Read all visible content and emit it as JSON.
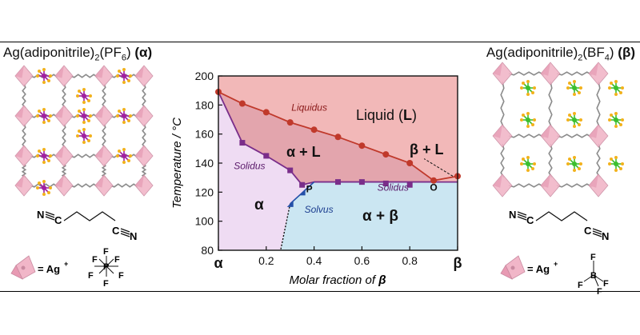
{
  "left_compound": {
    "formula_prefix": "Ag(adiponitrile)",
    "subscript": "2",
    "anion_prefix": "(PF",
    "anion_subscript": "6",
    "anion_suffix": ")",
    "phase_symbol": "(α)",
    "legend_equals": "= Ag",
    "legend_plus": "+",
    "anion_atoms": [
      "F",
      "F",
      "F",
      "P",
      "F",
      "F",
      "F"
    ],
    "molecule_N1": "N",
    "molecule_C1": "C",
    "molecule_C2": "C",
    "molecule_N2": "N"
  },
  "right_compound": {
    "formula_prefix": "Ag(adiponitrile)",
    "subscript": "2",
    "anion_prefix": "(BF",
    "anion_subscript": "4",
    "anion_suffix": ")",
    "phase_symbol": "(β)",
    "legend_equals": "= Ag",
    "legend_plus": "+",
    "anion_atoms": [
      "F",
      "B",
      "F",
      "F",
      "F"
    ],
    "molecule_N1": "N",
    "molecule_C1": "C",
    "molecule_C2": "C",
    "molecule_N2": "N"
  },
  "colors": {
    "liquid_region": "#f2b8b8",
    "alpha_L_region": "#e3a5ad",
    "alpha_region": "#efdcf3",
    "alpha_beta_region": "#cbe6f2",
    "liquidus": "#c0392b",
    "solidus": "#7a2e8a",
    "solvus": "#2450a8",
    "octahedra": "#f1b6c8",
    "linker": "#8a8a8a",
    "pf6_atom": "#a01fa0",
    "bf4_atom": "#3bbf2e",
    "fluorine": "#f2b21c"
  },
  "chart_data": {
    "type": "scatter",
    "xlabel_prefix": "Molar fraction of ",
    "xlabel_symbol": "β",
    "ylabel": "Temperature / °C",
    "xlim": [
      0,
      1
    ],
    "ylim": [
      80,
      200
    ],
    "x_ticks": [
      {
        "value": 0,
        "label": "α",
        "bold": true
      },
      {
        "value": 0.2,
        "label": "0.2"
      },
      {
        "value": 0.4,
        "label": "0.4"
      },
      {
        "value": 0.6,
        "label": "0.6"
      },
      {
        "value": 0.8,
        "label": "0.8"
      },
      {
        "value": 1,
        "label": "β",
        "bold": true
      }
    ],
    "y_ticks": [
      80,
      100,
      120,
      140,
      160,
      180,
      200
    ],
    "grid": false,
    "series": [
      {
        "name": "Liquidus",
        "marker": "circle",
        "color": "#c0392b",
        "points": [
          [
            0,
            189
          ],
          [
            0.1,
            181
          ],
          [
            0.2,
            175
          ],
          [
            0.3,
            168
          ],
          [
            0.4,
            163
          ],
          [
            0.5,
            158
          ],
          [
            0.6,
            152
          ],
          [
            0.7,
            146
          ],
          [
            0.8,
            140
          ],
          [
            0.9,
            128
          ],
          [
            1.0,
            131
          ]
        ]
      },
      {
        "name": "Solidus",
        "marker": "square",
        "color": "#7a2e8a",
        "points": [
          [
            0.1,
            154
          ],
          [
            0.2,
            145
          ],
          [
            0.3,
            135
          ],
          [
            0.35,
            125
          ],
          [
            0.5,
            127
          ],
          [
            0.6,
            127
          ],
          [
            0.7,
            126
          ],
          [
            0.8,
            125
          ]
        ]
      },
      {
        "name": "Solvus",
        "marker": "triangle",
        "color": "#2450a8",
        "points": [
          [
            0.3,
            112
          ],
          [
            0.35,
            120
          ]
        ]
      }
    ],
    "annotations": [
      {
        "text": "Liquidus",
        "x": 0.38,
        "y": 176,
        "style": "italic",
        "color": "#8b1a1a"
      },
      {
        "text": "Solidus",
        "x": 0.13,
        "y": 136,
        "style": "italic",
        "color": "#5a1a6a"
      },
      {
        "text": "Solidus",
        "x": 0.73,
        "y": 121,
        "style": "italic",
        "color": "#5a1a6a"
      },
      {
        "text": "Solvus",
        "x": 0.42,
        "y": 106,
        "style": "italic",
        "color": "#1b3d8f"
      },
      {
        "text": "P",
        "x": 0.38,
        "y": 120,
        "style": "bold",
        "color": "#111"
      },
      {
        "text": "O",
        "x": 0.9,
        "y": 121,
        "style": "bold",
        "color": "#111"
      }
    ],
    "region_labels": {
      "liquid": "Liquid (",
      "liquid_symbol": "L",
      "liquid_close": ")",
      "alpha_L": "α + L",
      "beta_L": "β + L",
      "alpha": "α",
      "alpha_beta": "α + β"
    }
  }
}
